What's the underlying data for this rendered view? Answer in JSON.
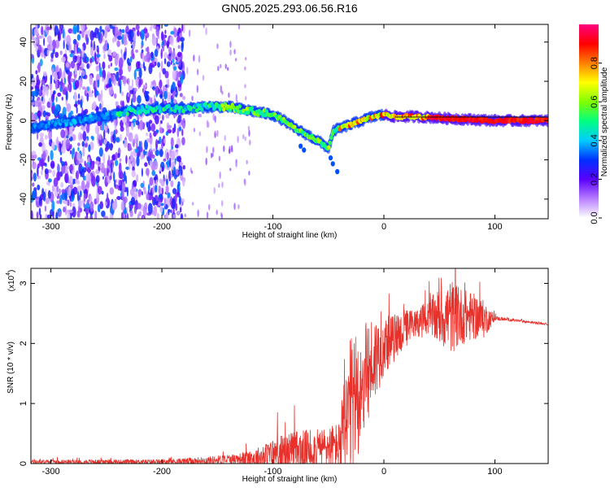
{
  "page_title": "GN05.2025.293.06.56.R16",
  "chart_data": [
    {
      "type": "heatmap",
      "title": "GN05.2025.293.06.56.R16",
      "xlabel": "Height of straight line (km)",
      "ylabel": "Frequency (Hz)",
      "xlim": [
        -318,
        148
      ],
      "ylim": [
        -50,
        49
      ],
      "x_ticks": [
        -300,
        -200,
        -100,
        0,
        100
      ],
      "x_tick_labels": [
        "-300",
        "-200",
        "-100",
        "0",
        "100"
      ],
      "y_ticks": [
        -40,
        -20,
        0,
        20,
        40
      ],
      "y_tick_labels": [
        "-40",
        "-20",
        "0",
        "20",
        "40"
      ],
      "ridge": {
        "x": [
          -318,
          -300,
          -250,
          -230,
          -200,
          -180,
          -160,
          -140,
          -120,
          -100,
          -90,
          -80,
          -70,
          -60,
          -50,
          -45,
          -40,
          -30,
          -20,
          -10,
          0,
          10,
          30,
          60,
          100,
          148
        ],
        "y": [
          -4,
          -2,
          2,
          5,
          6,
          6,
          7,
          7,
          5,
          3,
          0,
          -4,
          -7,
          -10,
          -14,
          -5,
          -4,
          -2,
          0,
          2,
          3,
          2,
          2,
          1,
          0,
          0
        ]
      },
      "noise_region_x": [
        -318,
        -180
      ],
      "colorbar": {
        "label": "Normalized spectral amplitude",
        "range": [
          0,
          1
        ],
        "ticks": [
          0.0,
          0.2,
          0.4,
          0.6,
          0.8
        ],
        "tick_labels": [
          "0.0",
          "0.2",
          "0.4",
          "0.6",
          "0.8"
        ],
        "colors": [
          "#ffffff",
          "#b77cff",
          "#5a00ff",
          "#0030ff",
          "#00ccff",
          "#00ff80",
          "#80ff00",
          "#ffff00",
          "#ff8000",
          "#ff0000",
          "#ff0080"
        ]
      }
    },
    {
      "type": "line",
      "xlabel": "Height of straight line (km)",
      "ylabel": "SNR (10 * v/v)",
      "y_scale_label": "(x10",
      "y_scale_exponent": "4",
      "xlim": [
        -318,
        148
      ],
      "ylim": [
        0,
        3.25
      ],
      "x_ticks": [
        -300,
        -200,
        -100,
        0,
        100
      ],
      "x_tick_labels": [
        "-300",
        "-200",
        "-100",
        "0",
        "100"
      ],
      "y_ticks": [
        0,
        1,
        2,
        3
      ],
      "y_tick_labels": [
        "0",
        "1",
        "2",
        "3"
      ],
      "series": [
        {
          "name": "SNR",
          "color": "#e8312b",
          "envelope": {
            "x": [
              -318,
              -200,
              -160,
              -130,
              -110,
              -100,
              -80,
              -60,
              -40,
              -35,
              -30,
              -20,
              -10,
              0,
              10,
              20,
              30,
              40,
              50,
              60,
              70,
              80,
              90,
              100,
              110,
              148
            ],
            "base": [
              0.03,
              0.03,
              0.05,
              0.08,
              0.1,
              0.15,
              0.2,
              0.25,
              0.3,
              0.5,
              0.9,
              1.3,
              1.7,
              1.95,
              2.1,
              2.25,
              2.35,
              2.4,
              2.45,
              2.45,
              2.45,
              2.45,
              2.4,
              2.42,
              2.4,
              2.32
            ],
            "amp": [
              0.04,
              0.05,
              0.08,
              0.12,
              0.25,
              0.35,
              0.45,
              0.4,
              0.5,
              1.4,
              1.5,
              1.2,
              1.0,
              0.6,
              0.5,
              0.4,
              0.3,
              0.4,
              0.6,
              0.8,
              0.6,
              0.5,
              0.4,
              0.05,
              0.03,
              0.02
            ]
          }
        }
      ]
    }
  ]
}
